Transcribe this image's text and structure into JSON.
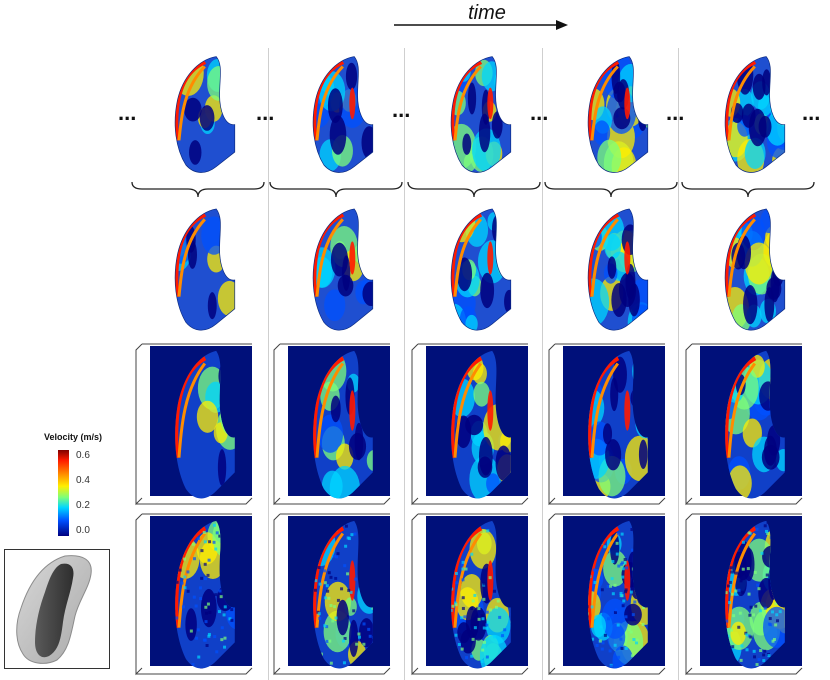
{
  "header": {
    "time_label": "time"
  },
  "ellipsis": "...",
  "colorbar": {
    "title": "Velocity (m/s)",
    "ticks": [
      "0.6",
      "0.4",
      "0.2",
      "0.0"
    ],
    "colors": [
      "#00007f",
      "#0050ff",
      "#00d5ff",
      "#7dff7a",
      "#ffee00",
      "#ff8c00",
      "#ff1a00",
      "#7f0000"
    ]
  },
  "grid": {
    "rows": 4,
    "columns": 5,
    "row_styles": [
      "smooth-shape",
      "smooth-shape",
      "smooth-box",
      "noisy-box"
    ]
  },
  "icons": {
    "thumbnail": "cardiac-chamber-icon",
    "arrow": "arrow-right-icon",
    "brace": "brace-down-icon"
  }
}
